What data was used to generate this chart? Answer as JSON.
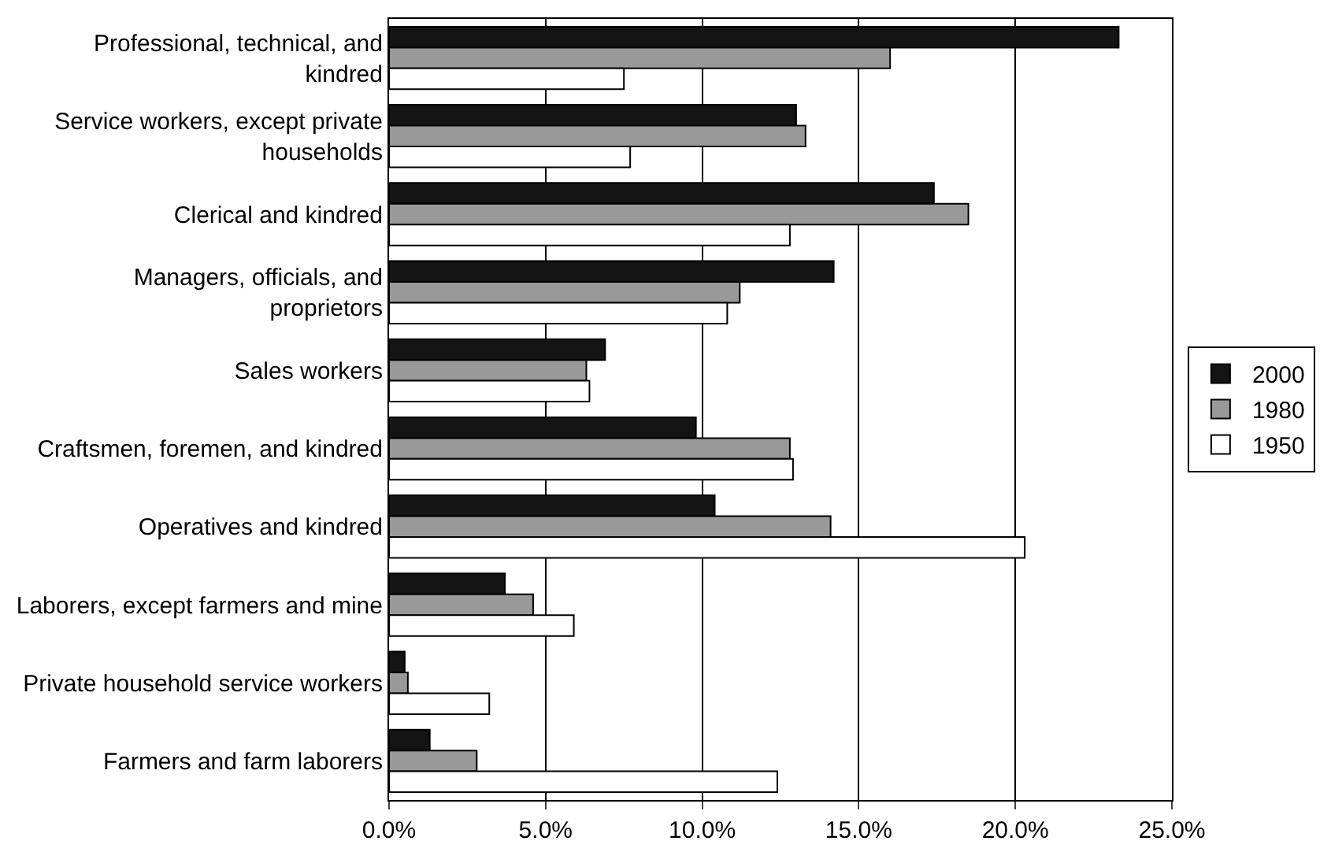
{
  "chart_data": {
    "type": "bar",
    "orientation": "horizontal",
    "categories": [
      "Professional, technical, and kindred",
      "Service workers, except private households",
      "Clerical and kindred",
      "Managers, officials, and proprietors",
      "Sales workers",
      "Craftsmen, foremen, and kindred",
      "Operatives and kindred",
      "Laborers, except farmers and mine",
      "Private household service workers",
      "Farmers and farm laborers"
    ],
    "series": [
      {
        "name": "2000",
        "color": "#141414",
        "values": [
          23.3,
          13.0,
          17.4,
          14.2,
          6.9,
          9.8,
          10.4,
          3.7,
          0.5,
          1.3
        ]
      },
      {
        "name": "1980",
        "color": "#999999",
        "values": [
          16.0,
          13.3,
          18.5,
          11.2,
          6.3,
          12.8,
          14.1,
          4.6,
          0.6,
          2.8
        ]
      },
      {
        "name": "1950",
        "color": "#ffffff",
        "values": [
          7.5,
          7.7,
          12.8,
          10.8,
          6.4,
          12.9,
          20.3,
          5.9,
          3.2,
          12.4
        ]
      }
    ],
    "xlim": [
      0,
      25
    ],
    "xticks": [
      {
        "value": 0,
        "label": "0.0%"
      },
      {
        "value": 5,
        "label": "5.0%"
      },
      {
        "value": 10,
        "label": "10.0%"
      },
      {
        "value": 15,
        "label": "15.0%"
      },
      {
        "value": 20,
        "label": "20.0%"
      },
      {
        "value": 25,
        "label": "25.0%"
      }
    ],
    "grid": "x",
    "legend": "right"
  }
}
